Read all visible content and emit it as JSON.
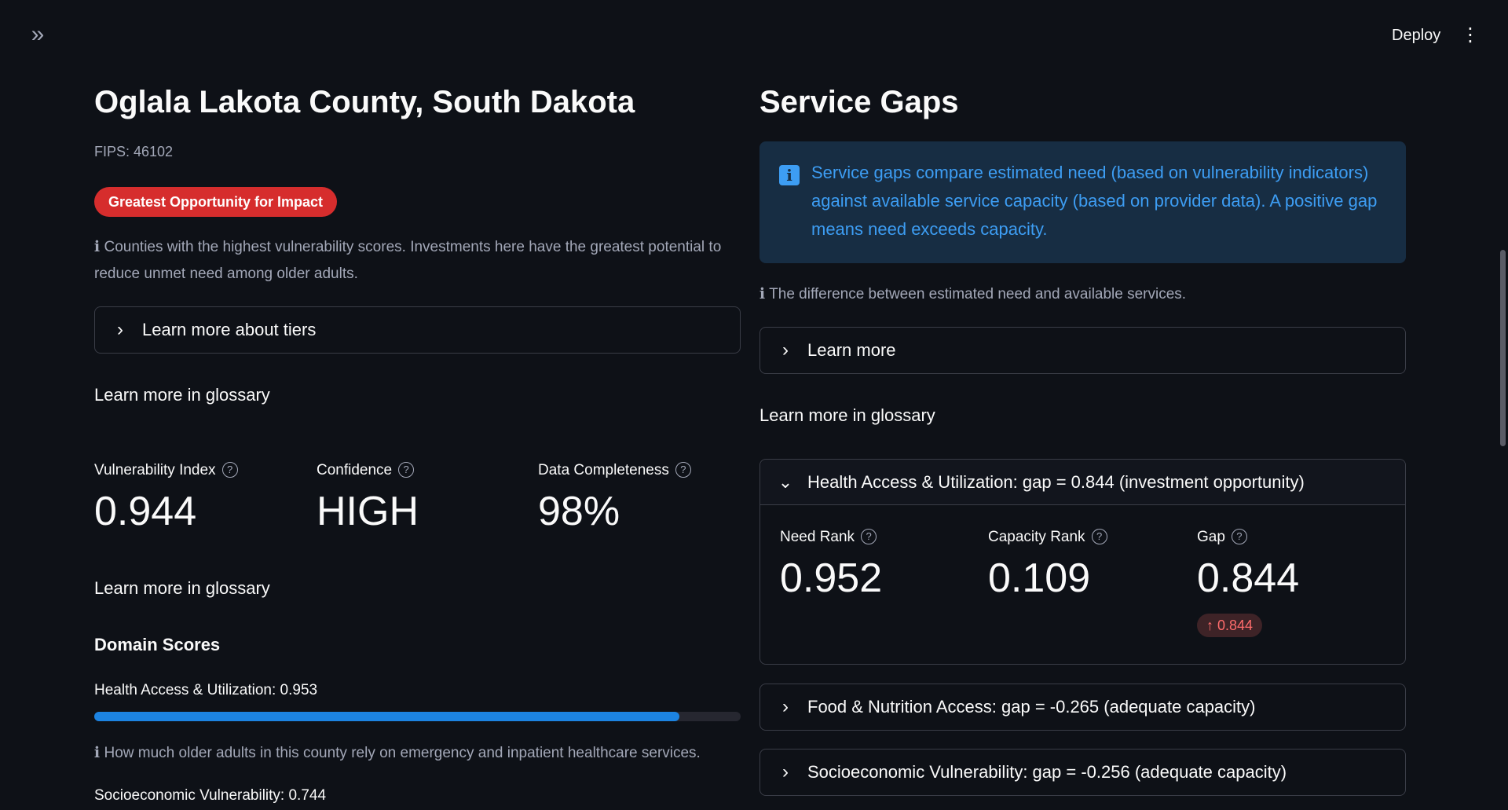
{
  "toolbar": {
    "sidebar_toggle_icon": "double-chevron-right-icon",
    "deploy_label": "Deploy",
    "menu_icon": "vertical-ellipsis-icon"
  },
  "left": {
    "title": "Oglala Lakota County, South Dakota",
    "fips": "FIPS: 46102",
    "tier_badge": "Greatest Opportunity for Impact",
    "tier_note": "ℹ Counties with the highest vulnerability scores. Investments here have the greatest potential to reduce unmet need among older adults.",
    "tiers_expander": "Learn more about tiers",
    "glossary_link_1": "Learn more in glossary",
    "metrics": [
      {
        "label": "Vulnerability Index",
        "value": "0.944"
      },
      {
        "label": "Confidence",
        "value": "HIGH"
      },
      {
        "label": "Data Completeness",
        "value": "98%"
      }
    ],
    "glossary_link_2": "Learn more in glossary",
    "domain_scores_heading": "Domain Scores",
    "domains": [
      {
        "label": "Health Access & Utilization: 0.953",
        "value": 0.953,
        "note": "ℹ How much older adults in this county rely on emergency and inpatient healthcare services."
      },
      {
        "label": "Socioeconomic Vulnerability: 0.744",
        "value": 0.744
      }
    ]
  },
  "right": {
    "title": "Service Gaps",
    "info_text": "Service gaps compare estimated need (based on vulnerability indicators) against available service capacity (based on provider data). A positive gap means need exceeds capacity.",
    "gap_note": "ℹ The difference between estimated need and available services.",
    "learn_more_expander": "Learn more",
    "glossary_link": "Learn more in glossary",
    "open_gap": {
      "header": "Health Access & Utilization: gap = 0.844 (investment opportunity)",
      "metrics": [
        {
          "label": "Need Rank",
          "value": "0.952"
        },
        {
          "label": "Capacity Rank",
          "value": "0.109"
        },
        {
          "label": "Gap",
          "value": "0.844",
          "delta": "↑ 0.844"
        }
      ]
    },
    "collapsed_gaps": [
      "Food & Nutrition Access: gap = -0.265 (adequate capacity)",
      "Socioeconomic Vulnerability: gap = -0.256 (adequate capacity)"
    ]
  },
  "colors": {
    "accent": "#1c83e1",
    "danger": "#d62d2d",
    "info": "#3d9df3"
  }
}
